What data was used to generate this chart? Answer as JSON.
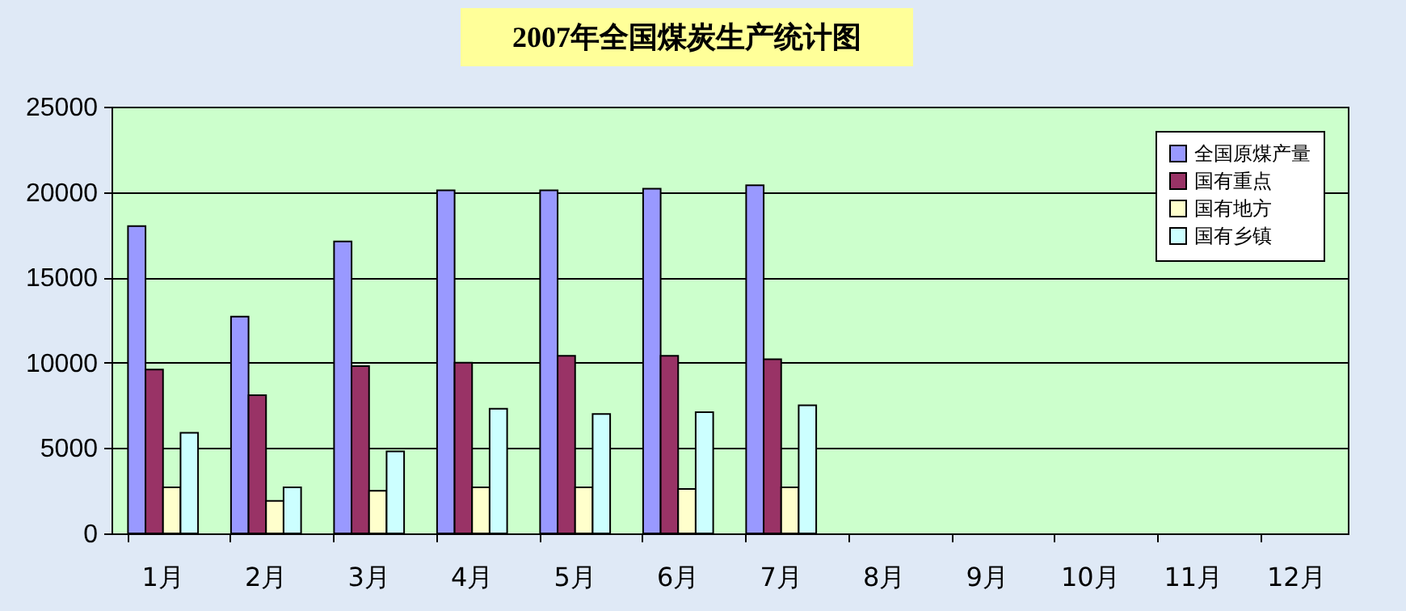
{
  "chart_data": {
    "type": "bar",
    "title": "2007年全国煤炭生产统计图",
    "categories": [
      "1月",
      "2月",
      "3月",
      "4月",
      "5月",
      "6月",
      "7月",
      "8月",
      "9月",
      "10月",
      "11月",
      "12月"
    ],
    "series": [
      {
        "name": "全国原煤产量",
        "color": "#9999ff",
        "values": [
          18000,
          12700,
          17100,
          20100,
          20100,
          20200,
          20400,
          null,
          null,
          null,
          null,
          null
        ]
      },
      {
        "name": "国有重点",
        "color": "#993366",
        "values": [
          9600,
          8100,
          9800,
          10000,
          10400,
          10400,
          10200,
          null,
          null,
          null,
          null,
          null
        ]
      },
      {
        "name": "国有地方",
        "color": "#ffffcc",
        "values": [
          2700,
          1900,
          2500,
          2700,
          2700,
          2600,
          2700,
          null,
          null,
          null,
          null,
          null
        ]
      },
      {
        "name": "国有乡镇",
        "color": "#ccffff",
        "values": [
          5900,
          2700,
          4800,
          7300,
          7000,
          7100,
          7500,
          null,
          null,
          null,
          null,
          null
        ]
      }
    ],
    "ylim": [
      0,
      25000
    ],
    "yticks": [
      0,
      5000,
      10000,
      15000,
      20000,
      25000
    ],
    "grid": "y",
    "legend": "top right"
  }
}
